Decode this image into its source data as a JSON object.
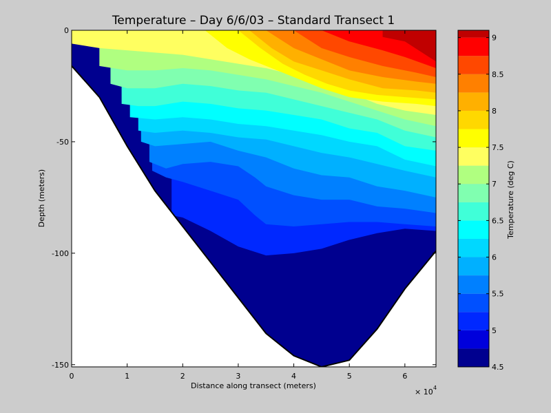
{
  "chart_data": {
    "type": "heatmap",
    "subtype": "filled-contour",
    "title": "Temperature – Day 6/6/03 – Standard Transect 1",
    "xlabel": "Distance along transect (meters)",
    "ylabel": "Depth (meters)",
    "x_multiplier": "× 10",
    "x_multiplier_exp": "4",
    "xlim": [
      0,
      65600
    ],
    "ylim": [
      -151,
      0
    ],
    "x_ticks": [
      0,
      10000,
      20000,
      30000,
      40000,
      50000,
      60000
    ],
    "x_tick_labels": [
      "0",
      "1",
      "2",
      "3",
      "4",
      "5",
      "6"
    ],
    "y_ticks": [
      0,
      -50,
      -100,
      -150
    ],
    "y_tick_labels": [
      "0",
      "-50",
      "-100",
      "-150"
    ],
    "colorbar": {
      "label": "Temperature (deg C)",
      "range": [
        4.5,
        9.1
      ],
      "ticks": [
        4.5,
        5,
        5.5,
        6,
        6.5,
        7,
        7.5,
        8,
        8.5,
        9
      ],
      "tick_labels": [
        "4.5",
        "5",
        "5.5",
        "6",
        "6.5",
        "7",
        "7.5",
        "8",
        "8.5",
        "9"
      ]
    },
    "levels": [
      4.5,
      4.75,
      5.0,
      5.25,
      5.5,
      5.75,
      6.0,
      6.25,
      6.5,
      6.75,
      7.0,
      7.25,
      7.5,
      7.75,
      8.0,
      8.25,
      8.5,
      8.75,
      9.0
    ],
    "level_colors": [
      "#00008f",
      "#0000dc",
      "#0028ff",
      "#0050ff",
      "#0080ff",
      "#00b0ff",
      "#00d8ff",
      "#00ffff",
      "#40ffd8",
      "#80ffb0",
      "#b0ff80",
      "#ffff60",
      "#ffff00",
      "#ffd800",
      "#ffb000",
      "#ff8000",
      "#ff4800",
      "#ff0000",
      "#c00000"
    ],
    "bottom_profile": {
      "x": [
        0,
        5000,
        10000,
        15000,
        20000,
        25000,
        30000,
        35000,
        40000,
        45000,
        50000,
        55000,
        60000,
        65600
      ],
      "depth": [
        -16,
        -30,
        -52,
        -72,
        -88,
        -104,
        -120,
        -136,
        -146,
        -151,
        -148,
        -134,
        -116,
        -99
      ]
    },
    "isotherms": [
      {
        "level": 8.75,
        "x": [
          56000,
          60000,
          65600
        ],
        "depth": [
          -3,
          -5,
          -14
        ]
      },
      {
        "level": 8.5,
        "x": [
          45000,
          50000,
          56000,
          60000,
          65600
        ],
        "depth": [
          0,
          -5,
          -9,
          -12,
          -17
        ]
      },
      {
        "level": 8.25,
        "x": [
          40000,
          45000,
          50000,
          56000,
          62000,
          65600
        ],
        "depth": [
          0,
          -8,
          -12,
          -16,
          -19,
          -21
        ]
      },
      {
        "level": 8.0,
        "x": [
          35000,
          40000,
          45000,
          50000,
          56000,
          62000,
          65600
        ],
        "depth": [
          0,
          -8,
          -13,
          -18,
          -21,
          -23,
          -24
        ]
      },
      {
        "level": 7.75,
        "x": [
          32000,
          36000,
          40000,
          45000,
          50000,
          56000,
          62000,
          65600
        ],
        "depth": [
          0,
          -8,
          -14,
          -18,
          -22,
          -26,
          -27,
          -28
        ]
      },
      {
        "level": 7.5,
        "x": [
          30000,
          34000,
          38000,
          42000,
          46000,
          50000,
          55000,
          60000,
          65600
        ],
        "depth": [
          0,
          -8,
          -15,
          -20,
          -24,
          -27,
          -29,
          -30,
          -31
        ]
      },
      {
        "level": 7.25,
        "x": [
          24000,
          28000,
          32000,
          36000,
          40000,
          45000,
          50000,
          56000,
          62000,
          65600
        ],
        "depth": [
          0,
          -8,
          -13,
          -17,
          -21,
          -26,
          -30,
          -32,
          -33,
          -34
        ]
      },
      {
        "level": 7.0,
        "x": [
          0,
          5000,
          10000,
          15000,
          20000,
          25000,
          30000,
          35000,
          40000,
          45000,
          50000,
          55000,
          60000,
          65600
        ],
        "depth": [
          -6,
          -8,
          -9,
          -10,
          -11,
          -13,
          -15,
          -17,
          -20,
          -24,
          -28,
          -33,
          -36,
          -38
        ]
      },
      {
        "level": 6.75,
        "x": [
          5000,
          10000,
          15000,
          20000,
          25000,
          30000,
          35000,
          40000,
          45000,
          50000,
          55000,
          60000,
          65600
        ],
        "depth": [
          -16,
          -18,
          -18,
          -17,
          -18,
          -20,
          -22,
          -25,
          -28,
          -32,
          -36,
          -40,
          -43
        ]
      },
      {
        "level": 6.5,
        "x": [
          7000,
          10000,
          15000,
          20000,
          25000,
          30000,
          35000,
          40000,
          45000,
          50000,
          55000,
          60000,
          65600
        ],
        "depth": [
          -24,
          -26,
          -26,
          -24,
          -25,
          -27,
          -28,
          -31,
          -34,
          -37,
          -40,
          -45,
          -48
        ]
      },
      {
        "level": 6.25,
        "x": [
          9000,
          12000,
          15000,
          20000,
          25000,
          30000,
          35000,
          40000,
          45000,
          50000,
          55000,
          60000,
          65600
        ],
        "depth": [
          -33,
          -34,
          -34,
          -32,
          -33,
          -35,
          -36,
          -38,
          -40,
          -44,
          -46,
          -52,
          -54
        ]
      },
      {
        "level": 6.0,
        "x": [
          10500,
          15000,
          20000,
          25000,
          30000,
          35000,
          40000,
          45000,
          50000,
          55000,
          60000,
          65600
        ],
        "depth": [
          -39,
          -40,
          -39,
          -40,
          -42,
          -43,
          -45,
          -47,
          -50,
          -52,
          -58,
          -61
        ]
      },
      {
        "level": 5.75,
        "x": [
          12000,
          15000,
          20000,
          25000,
          30000,
          35000,
          40000,
          45000,
          50000,
          55000,
          60000,
          65600
        ],
        "depth": [
          -45,
          -46,
          -45,
          -46,
          -48,
          -49,
          -52,
          -55,
          -57,
          -60,
          -63,
          -66
        ]
      },
      {
        "level": 5.5,
        "x": [
          12500,
          15000,
          20000,
          25000,
          30000,
          35000,
          40000,
          45000,
          50000,
          55000,
          60000,
          65600
        ],
        "depth": [
          -50,
          -52,
          -51,
          -50,
          -54,
          -57,
          -62,
          -65,
          -66,
          -70,
          -72,
          -75
        ]
      },
      {
        "level": 5.25,
        "x": [
          14000,
          17000,
          20000,
          25000,
          30000,
          33000,
          35000,
          40000,
          45000,
          50000,
          55000,
          60000,
          65600
        ],
        "depth": [
          -59,
          -62,
          -60,
          -59,
          -61,
          -66,
          -70,
          -74,
          -76,
          -76,
          -79,
          -80,
          -82
        ]
      },
      {
        "level": 5.0,
        "x": [
          14500,
          17000,
          20000,
          25000,
          30000,
          33000,
          35000,
          40000,
          45000,
          50000,
          55000,
          60000,
          65600
        ],
        "depth": [
          -63,
          -66,
          -68,
          -72,
          -76,
          -83,
          -87,
          -88,
          -87,
          -86,
          -86,
          -87,
          -88
        ]
      },
      {
        "level": 4.75,
        "x": [
          18000,
          20000,
          25000,
          30000,
          35000,
          40000,
          45000,
          50000,
          55000,
          60000,
          65600
        ],
        "depth": [
          -83,
          -84,
          -90,
          -97,
          -101,
          -100,
          -98,
          -94,
          -91,
          -89,
          -90
        ]
      }
    ]
  }
}
